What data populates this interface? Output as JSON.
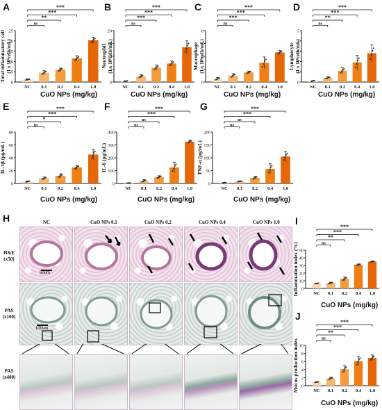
{
  "labels": {
    "A": "A",
    "B": "B",
    "C": "C",
    "D": "D",
    "E": "E",
    "F": "F",
    "G": "G",
    "H": "H",
    "I": "I",
    "J": "J"
  },
  "common": {
    "xlabel": "CuO NPs (mg/kg)",
    "categories": [
      "NC",
      "0.1",
      "0.2",
      "0.4",
      "1.0"
    ],
    "colors": [
      "#f8d7ad",
      "#f5b56c",
      "#f39b3d",
      "#ef7f15",
      "#e5670a"
    ],
    "ns": "ns"
  },
  "chart_data": [
    {
      "id": "A",
      "type": "bar",
      "ylabel": "Total inflammatory cell",
      "ylabel2": "(1 x 10⁶cells/mL)",
      "ticks": [
        "0",
        "5",
        "10",
        "15",
        "20",
        "25"
      ],
      "ylim": [
        0,
        25
      ],
      "values": [
        1.2,
        4.5,
        6,
        11.5,
        20.3
      ],
      "errors": [
        0.3,
        1,
        0.8,
        1.3,
        1.5
      ],
      "sig": [
        {
          "to": "0.1",
          "label": "ns"
        },
        {
          "to": "0.2",
          "label": "**"
        },
        {
          "to": "0.4",
          "label": "***"
        },
        {
          "to": "1.0",
          "label": "***"
        }
      ]
    },
    {
      "id": "B",
      "type": "bar",
      "ylabel": "Neutrophil",
      "ylabel2": "(1 x 10⁶cells/mL)",
      "ticks": [
        "0",
        "5",
        "10",
        "15",
        "20"
      ],
      "ylim": [
        0,
        20
      ],
      "values": [
        0.3,
        2.2,
        5.6,
        7.2,
        13.5
      ],
      "errors": [
        0.2,
        0.6,
        1,
        1,
        2.5
      ],
      "sig": [
        {
          "to": "0.1",
          "label": "ns"
        },
        {
          "to": "0.2",
          "label": "***"
        },
        {
          "to": "0.4",
          "label": "***"
        },
        {
          "to": "1.0",
          "label": "***"
        }
      ]
    },
    {
      "id": "C",
      "type": "bar",
      "ylabel": "Macrophage",
      "ylabel2": "(1 x 10⁶cells/mL)",
      "ticks": [
        "0",
        "2",
        "4",
        "6",
        "8"
      ],
      "ylim": [
        0,
        8
      ],
      "values": [
        0.5,
        1,
        1.5,
        3,
        4.6
      ],
      "errors": [
        0.2,
        0.3,
        0.2,
        0.9,
        0.3
      ],
      "sig": [
        {
          "to": "0.1",
          "label": "ns"
        },
        {
          "to": "0.2",
          "label": "***"
        },
        {
          "to": "0.4",
          "label": "***"
        },
        {
          "to": "1.0",
          "label": "***"
        }
      ]
    },
    {
      "id": "D",
      "type": "bar",
      "ylabel": "Lymphocyte",
      "ylabel2": "(1 x 10⁶cells/mL)",
      "ticks": [
        "0",
        "1",
        "2",
        "3",
        "4",
        "5"
      ],
      "ylim": [
        0,
        5
      ],
      "values": [
        0.1,
        0.4,
        1.1,
        1.9,
        2.8
      ],
      "errors": [
        0.05,
        0.1,
        0.3,
        0.7,
        0.8
      ],
      "sig": [
        {
          "to": "0.1",
          "label": "ns"
        },
        {
          "to": "0.2",
          "label": "**"
        },
        {
          "to": "0.4",
          "label": "***"
        },
        {
          "to": "1.0",
          "label": "***"
        }
      ]
    },
    {
      "id": "E",
      "type": "bar",
      "ylabel": "IL-1β (pg/mL)",
      "ylabel2": "",
      "ticks": [
        "0",
        "20",
        "40",
        "60",
        "80"
      ],
      "ylim": [
        0,
        80
      ],
      "values": [
        3,
        8,
        12,
        25,
        45
      ],
      "errors": [
        1,
        2,
        3,
        3,
        8
      ],
      "sig": [
        {
          "to": "0.1",
          "label": "ns"
        },
        {
          "to": "0.2",
          "label": "*"
        },
        {
          "to": "0.4",
          "label": "***"
        },
        {
          "to": "1.0",
          "label": "***"
        }
      ]
    },
    {
      "id": "F",
      "type": "bar",
      "ylabel": "IL-6 (pg/mL)",
      "ylabel2": "",
      "ticks": [
        "0",
        "100",
        "200",
        "300",
        "400"
      ],
      "ylim": [
        0,
        400
      ],
      "values": [
        3,
        20,
        50,
        125,
        325
      ],
      "errors": [
        2,
        10,
        10,
        40,
        12
      ],
      "sig": [
        {
          "to": "0.1",
          "label": "ns"
        },
        {
          "to": "0.2",
          "label": "ns"
        },
        {
          "to": "0.4",
          "label": "***"
        },
        {
          "to": "1.0",
          "label": "***"
        }
      ]
    },
    {
      "id": "G",
      "type": "bar",
      "ylabel": "TNF-α (pg/mL)",
      "ylabel2": "",
      "ticks": [
        "0",
        "50",
        "100",
        "150",
        "200"
      ],
      "ylim": [
        0,
        200
      ],
      "values": [
        3,
        8,
        22,
        57,
        105
      ],
      "errors": [
        1,
        2,
        6,
        20,
        20
      ],
      "sig": [
        {
          "to": "0.1",
          "label": "ns"
        },
        {
          "to": "0.2",
          "label": "ns"
        },
        {
          "to": "0.4",
          "label": "***"
        },
        {
          "to": "1.0",
          "label": "***"
        }
      ]
    },
    {
      "id": "I",
      "type": "bar",
      "ylabel": "Inflammation index (%)",
      "ylabel2": "",
      "ticks": [
        "0",
        "10",
        "20",
        "30",
        "40",
        "50"
      ],
      "ylim": [
        0,
        50
      ],
      "values": [
        6.5,
        7,
        12.5,
        31,
        35
      ],
      "errors": [
        0.5,
        1,
        2.5,
        1,
        0.8
      ],
      "sig": [
        {
          "to": "0.1",
          "label": "ns"
        },
        {
          "to": "0.2",
          "label": "**"
        },
        {
          "to": "0.4",
          "label": "***"
        },
        {
          "to": "1.0",
          "label": "***"
        }
      ]
    },
    {
      "id": "J",
      "type": "bar",
      "ylabel": "Mucus production index",
      "ylabel2": "",
      "ticks": [
        "0",
        "2",
        "4",
        "6",
        "8",
        "10"
      ],
      "ylim": [
        0,
        10
      ],
      "values": [
        0.9,
        1.8,
        4.1,
        6.1,
        6.9
      ],
      "errors": [
        0.1,
        0.3,
        0.9,
        1.2,
        0.7
      ],
      "sig": [
        {
          "to": "0.1",
          "label": "ns"
        },
        {
          "to": "0.2",
          "label": "**"
        },
        {
          "to": "0.4",
          "label": "***"
        },
        {
          "to": "1.0",
          "label": "***"
        }
      ]
    }
  ],
  "histology": {
    "columns": [
      "NC",
      "CuO NPs 0.1",
      "CuO NPs 0.2",
      "CuO NPs 0.4",
      "CuO NPs 1.0"
    ],
    "rows": [
      {
        "label": "H&E",
        "mag": "(x50)"
      },
      {
        "label": "PAS",
        "mag": "(x100)"
      },
      {
        "label": "PAS",
        "mag": "(x400)"
      }
    ],
    "scalebar_he": "50um",
    "scalebar_pas": "100um"
  }
}
